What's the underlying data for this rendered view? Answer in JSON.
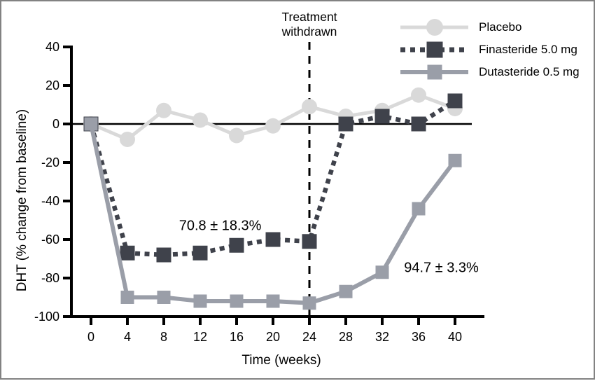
{
  "frame": {
    "background": "#ffffff",
    "border_color": "#828282"
  },
  "labels": {
    "vline_line1": "Treatment",
    "vline_line2": "withdrawn"
  },
  "chart_data": {
    "type": "line",
    "title": "",
    "xlabel": "Time (weeks)",
    "ylabel": "DHT (% change from baseline)",
    "x": [
      0,
      4,
      8,
      12,
      16,
      20,
      24,
      28,
      32,
      36,
      40
    ],
    "xticks": [
      0,
      4,
      8,
      12,
      16,
      20,
      24,
      28,
      32,
      36,
      40
    ],
    "yticks": [
      40,
      20,
      0,
      -20,
      -40,
      -60,
      -80,
      -100
    ],
    "xlim": [
      -2,
      43
    ],
    "ylim": [
      -100,
      40
    ],
    "grid": false,
    "legend_position": "top-right",
    "axis_color": "#000000",
    "series": [
      {
        "name": "Placebo",
        "marker": "circle",
        "marker_size": 22,
        "line_style": "solid",
        "line_width": 5,
        "color": "#d9d9d9",
        "values": [
          0,
          -8,
          7,
          2,
          -6,
          -1,
          9,
          4,
          7,
          15,
          8
        ]
      },
      {
        "name": "Finasteride 5.0 mg",
        "marker": "square",
        "marker_size": 21,
        "line_style": "dotted",
        "line_width": 6.5,
        "color": "#3f424b",
        "values": [
          0,
          -67,
          -68,
          -67,
          -63,
          -60,
          -61,
          0,
          4,
          0,
          12
        ]
      },
      {
        "name": "Dutasteride 0.5 mg",
        "marker": "square",
        "marker_size": 19,
        "line_style": "solid",
        "line_width": 6,
        "color": "#9a9ea8",
        "values": [
          0,
          -90,
          -90,
          -92,
          -92,
          -92,
          -93,
          -87,
          -77,
          -44,
          -19
        ]
      }
    ],
    "reference_lines": [
      {
        "type": "vline",
        "x_week": 24,
        "style": "dashed",
        "label": "Treatment withdrawn"
      },
      {
        "type": "hline",
        "y_value": 0,
        "style": "solid"
      }
    ],
    "annotations": [
      {
        "text": "70.8 ± 18.3%",
        "x_week": 14.2,
        "y_value": -53
      },
      {
        "text": "94.7 ± 3.3%",
        "x_week": 38.5,
        "y_value": -75
      }
    ]
  }
}
